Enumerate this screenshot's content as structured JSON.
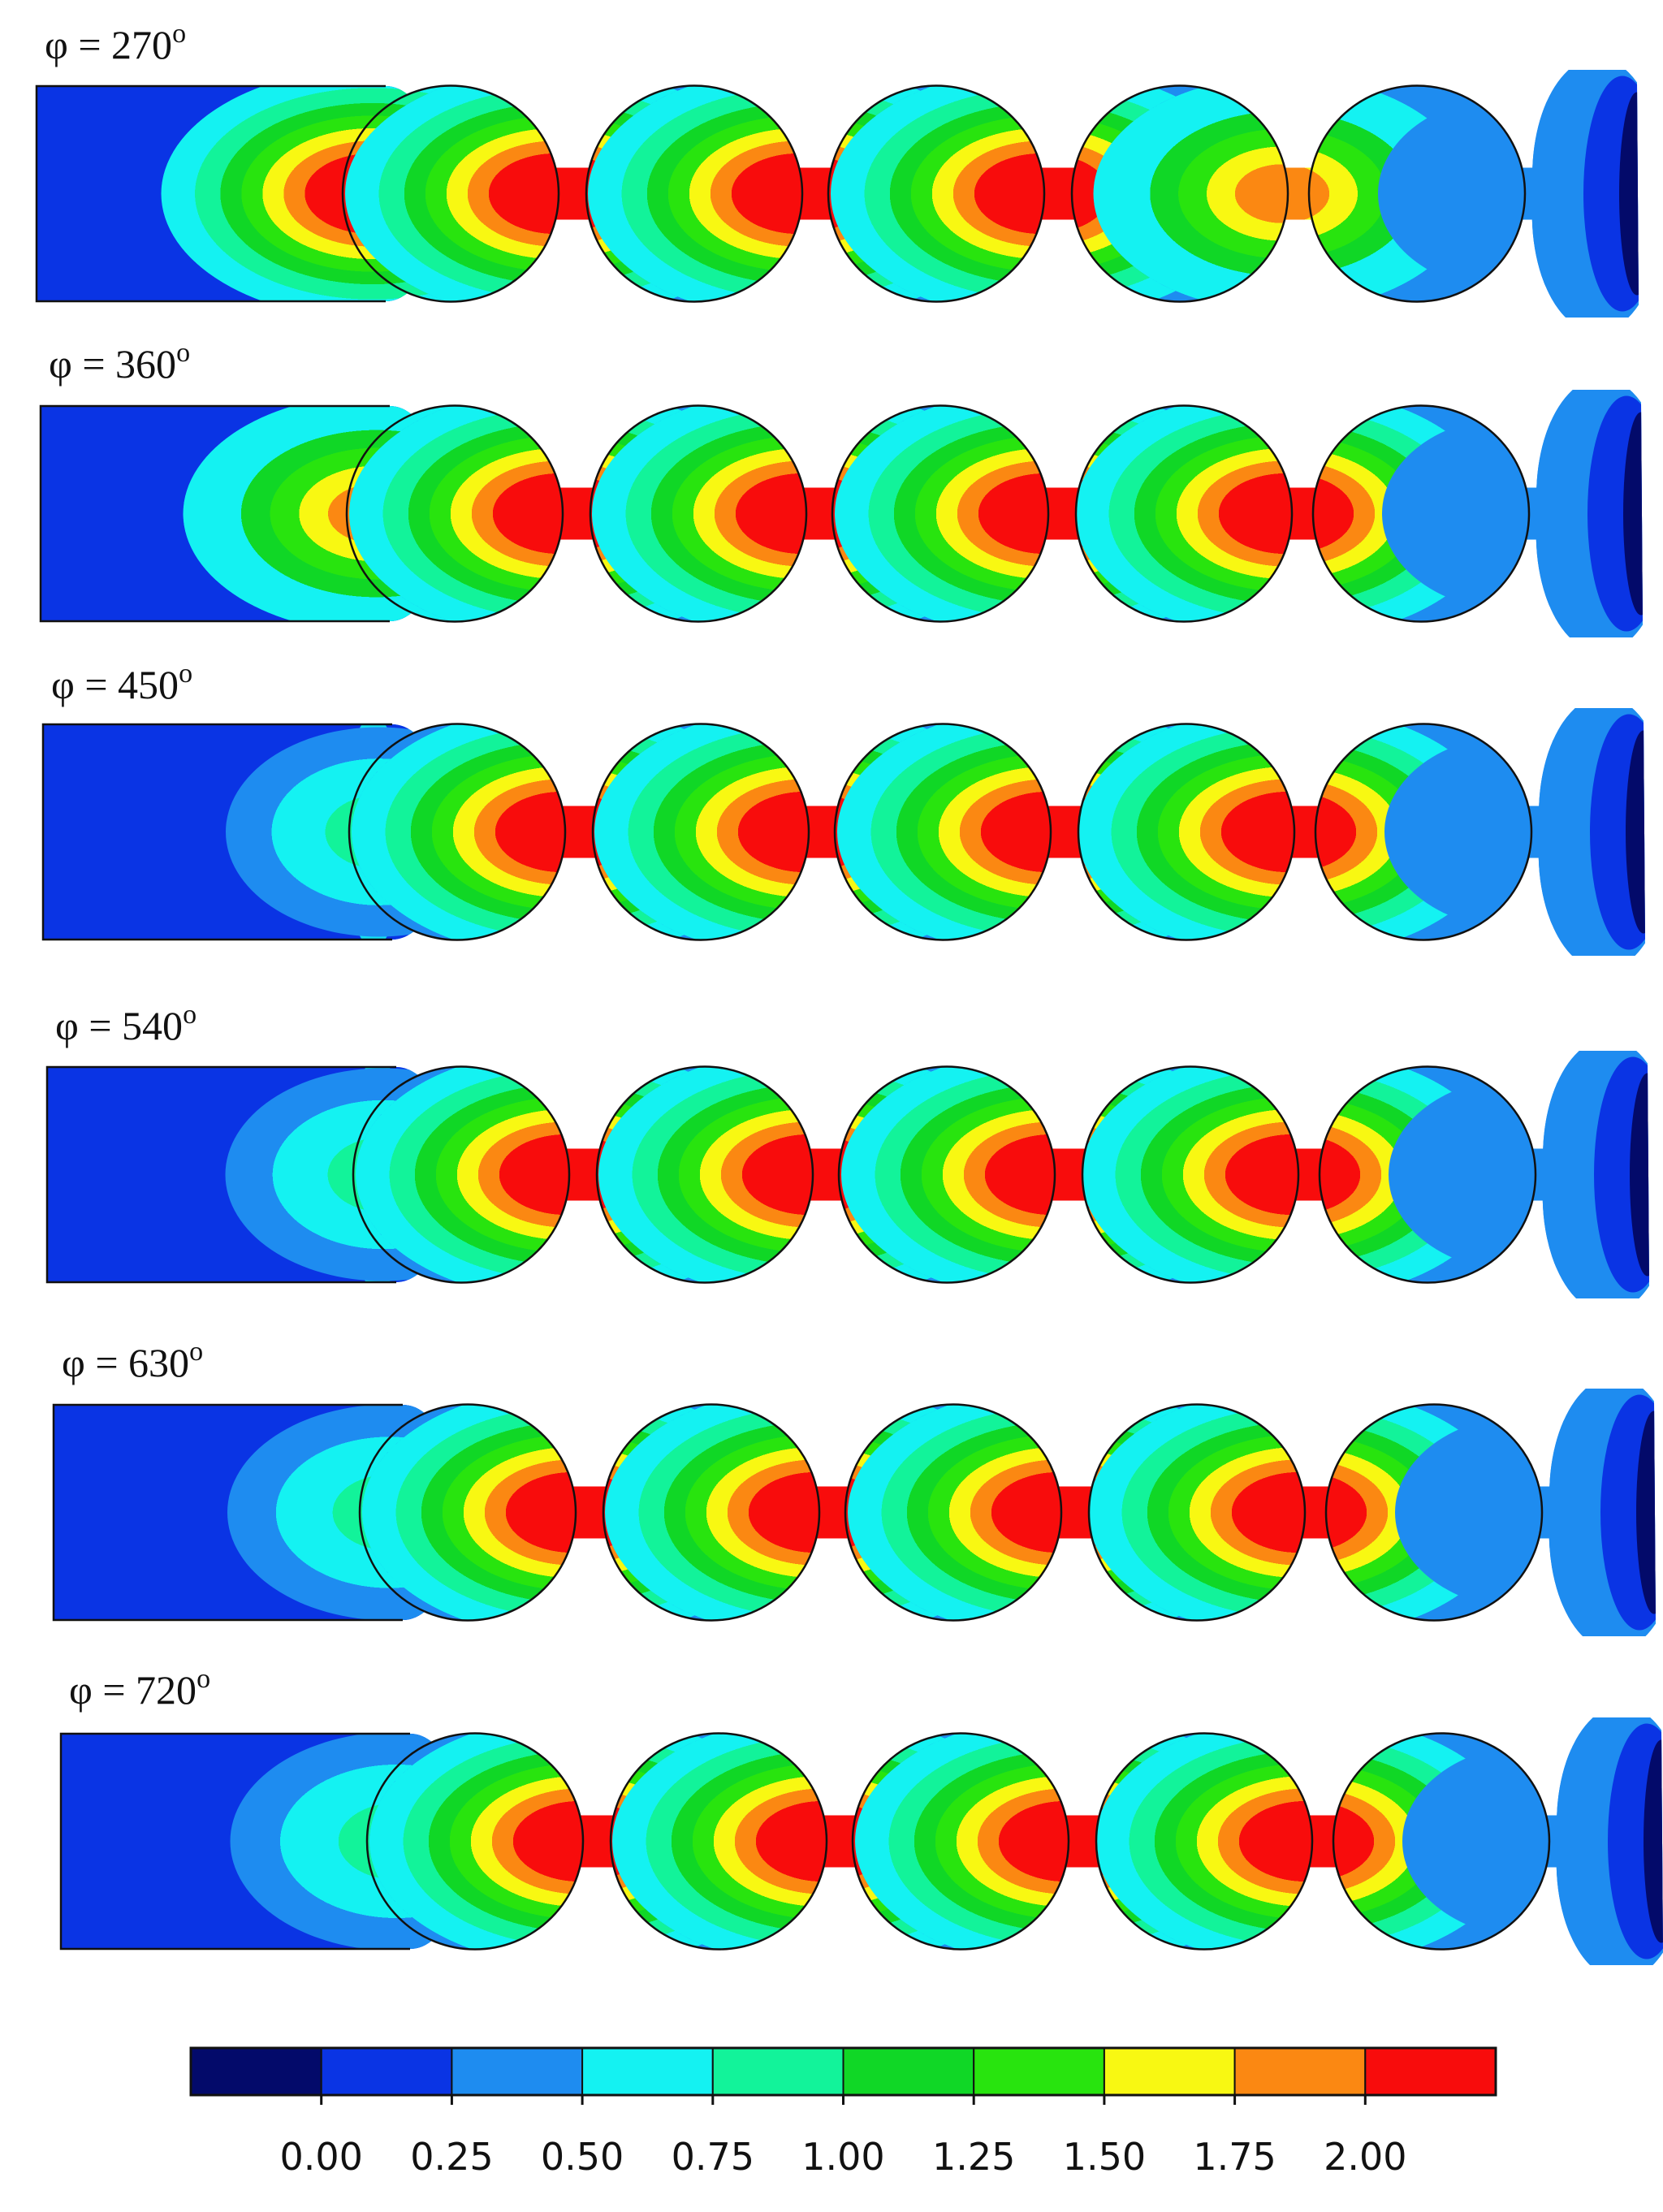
{
  "figure": {
    "panels": [
      {
        "label": "φ = 270",
        "degree_mark": "o"
      },
      {
        "label": "φ = 360",
        "degree_mark": "o"
      },
      {
        "label": "φ = 450",
        "degree_mark": "o"
      },
      {
        "label": "φ = 540",
        "degree_mark": "o"
      },
      {
        "label": "φ = 630",
        "degree_mark": "o"
      },
      {
        "label": "φ = 720",
        "degree_mark": "o"
      }
    ],
    "colorbar": {
      "tick_labels": [
        "0.00",
        "0.25",
        "0.50",
        "0.75",
        "1.00",
        "1.25",
        "1.50",
        "1.75",
        "2.00"
      ],
      "colors": [
        "#030a6a",
        "#0a34e4",
        "#1e8cf0",
        "#14f2f2",
        "#12f39a",
        "#10d726",
        "#28e40e",
        "#f8f812",
        "#fb8812",
        "#f80c0c"
      ]
    },
    "palette": {
      "deep": "#030a6a",
      "blue": "#0a34e4",
      "mid": "#1e8cf0",
      "cyan": "#14f2f2",
      "aqua": "#12f39a",
      "green": "#10d726",
      "lime": "#28e40e",
      "yellow": "#f8f812",
      "orange": "#fb8812",
      "red": "#f80c0c"
    }
  }
}
